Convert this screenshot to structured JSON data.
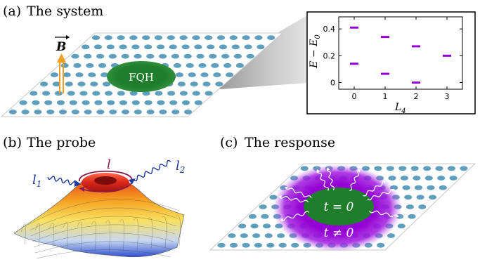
{
  "panels": {
    "a": {
      "label": "(a)",
      "title": "The system",
      "droplet_label": "FQH",
      "field_symbol": "B"
    },
    "b": {
      "label": "(b)",
      "title": "The probe",
      "l_label": "l",
      "l1_label": "l",
      "l1_sub": "1",
      "l2_label": "l",
      "l2_sub": "2"
    },
    "c": {
      "label": "(c)",
      "title": "The response",
      "inner_label": "t = 0",
      "outer_label": "t ≠ 0"
    }
  },
  "inset": {
    "ylabel_main": "E − E",
    "ylabel_sub": "0",
    "xlabel_main": "L",
    "xlabel_sub": "4",
    "x_ticks": [
      "0",
      "1",
      "2",
      "3"
    ],
    "y_ticks": [
      "0",
      "0.2",
      "0.4"
    ]
  },
  "chart_data": {
    "type": "scatter",
    "title": "",
    "xlabel": "L_4",
    "ylabel": "E − E_0",
    "xlim": [
      -0.5,
      3.5
    ],
    "ylim": [
      -0.05,
      0.49
    ],
    "marker": "horizontal-dash",
    "color": "#9400d3",
    "points": [
      {
        "x": 0,
        "y": 0.41
      },
      {
        "x": 0,
        "y": 0.14
      },
      {
        "x": 1,
        "y": 0.34
      },
      {
        "x": 1,
        "y": 0.065
      },
      {
        "x": 2,
        "y": 0.27
      },
      {
        "x": 2,
        "y": 0.0
      },
      {
        "x": 3,
        "y": 0.2
      }
    ]
  },
  "colors": {
    "dot": "#5f9fbe",
    "droplet": "#1f7d2c",
    "accent": "#9400d3",
    "field_arrow": "#f0a020",
    "probe_wave": "#1e3a9c",
    "orbit": "#8b1a4a"
  }
}
